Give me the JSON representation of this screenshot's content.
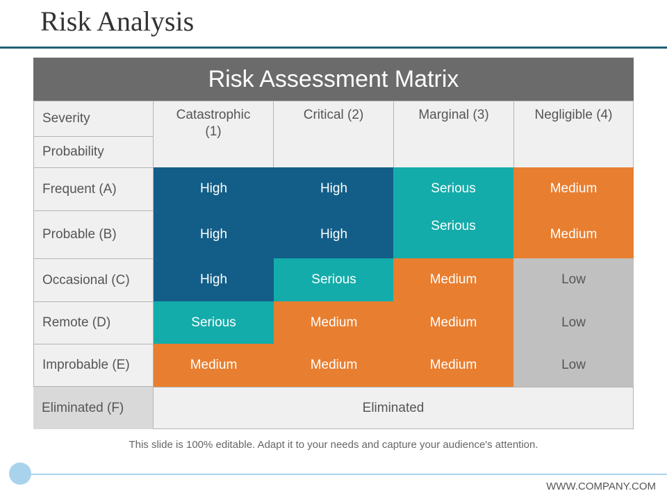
{
  "slide": {
    "title": "Risk Analysis",
    "footnote": "This slide is 100% editable. Adapt it to your needs and capture your audience's attention.",
    "footer_url": "WWW.COMPANY.COM"
  },
  "matrix": {
    "title": "Risk Assessment Matrix",
    "severity_label": "Severity",
    "probability_label": "Probability",
    "columns": [
      "Catastrophic (1)",
      "Critical (2)",
      "Marginal (3)",
      "Negligible (4)"
    ],
    "rows": [
      {
        "label": "Frequent (A)",
        "cells": [
          "High",
          "High",
          "Serious",
          "Medium"
        ]
      },
      {
        "label": "Probable (B)",
        "cells": [
          "High",
          "High",
          "Serious",
          "Medium"
        ]
      },
      {
        "label": "Occasional (C)",
        "cells": [
          "High",
          "Serious",
          "Medium",
          "Low"
        ]
      },
      {
        "label": "Remote (D)",
        "cells": [
          "Serious",
          "Medium",
          "Medium",
          "Low"
        ]
      },
      {
        "label": "Improbable (E)",
        "cells": [
          "Medium",
          "Medium",
          "Medium",
          "Low"
        ]
      }
    ],
    "eliminated": {
      "label": "Eliminated (F)",
      "value": "Eliminated"
    },
    "colors": {
      "high": "#135e88",
      "serious": "#14acaa",
      "medium": "#e87e2f",
      "low": "#c0c0c0",
      "header": "#6b6b6b"
    }
  }
}
